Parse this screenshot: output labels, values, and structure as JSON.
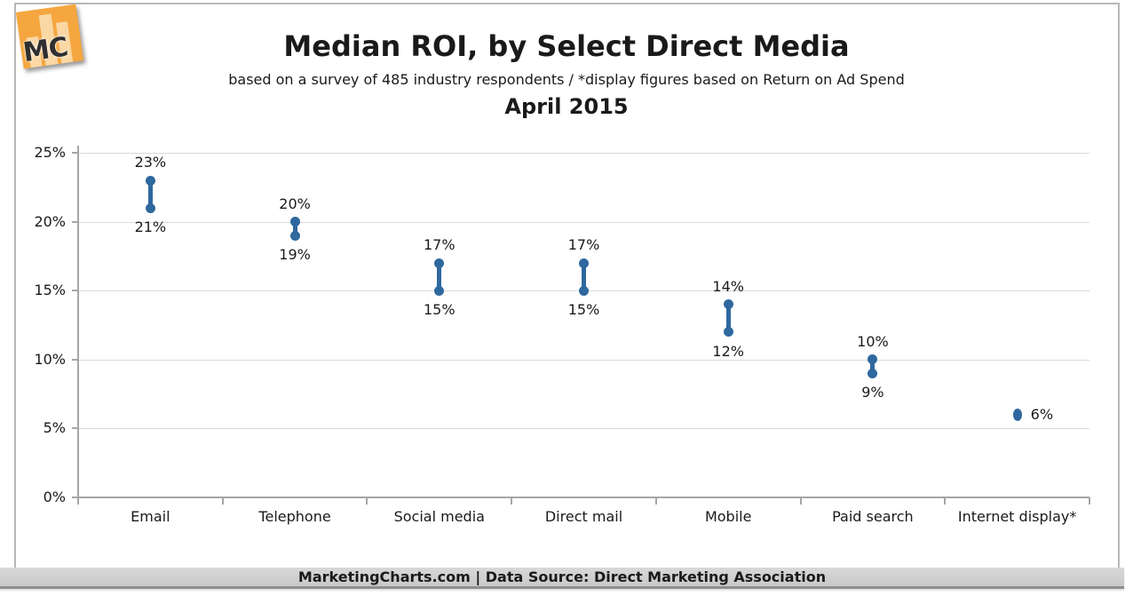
{
  "logo": {
    "text": "MC"
  },
  "header": {
    "title": "Median ROI, by Select Direct Media",
    "subtitle": "based on a survey of 485 industry respondents / *display figures based on Return on Ad Spend",
    "period": "April 2015"
  },
  "footer": {
    "text": "MarketingCharts.com | Data Source: Direct Marketing Association"
  },
  "colors": {
    "accent_blue": "#2E689E",
    "gridline": "#D9D9D9",
    "axis": "#A6A6A6",
    "text": "#1A1A1A",
    "footer_bg": "#CFCFCF",
    "footer_border": "#8E8E8E",
    "logo_orange": "#F5A63F",
    "logo_bar": "#FAD7A3"
  },
  "chart_data": {
    "type": "dumbbell-range",
    "title": "Median ROI, by Select Direct Media",
    "subtitle": "based on a survey of 485 industry respondents / *display figures based on Return on Ad Spend",
    "period_label": "April 2015",
    "xlabel": "",
    "ylabel": "",
    "ylim": [
      0,
      25
    ],
    "grid": "horizontal",
    "legend": "none",
    "y_ticks": [
      {
        "value": 25,
        "label": "25%"
      },
      {
        "value": 20,
        "label": "20%"
      },
      {
        "value": 15,
        "label": "15%"
      },
      {
        "value": 10,
        "label": "10%"
      },
      {
        "value": 5,
        "label": "5%"
      },
      {
        "value": 0,
        "label": "0%"
      }
    ],
    "categories": [
      "Email",
      "Telephone",
      "Social media",
      "Direct mail",
      "Mobile",
      "Paid search",
      "Internet display*"
    ],
    "points": [
      {
        "category": "Email",
        "high": 23,
        "low": 21,
        "high_label": "23%",
        "low_label": "21%"
      },
      {
        "category": "Telephone",
        "high": 20,
        "low": 19,
        "high_label": "20%",
        "low_label": "19%"
      },
      {
        "category": "Social media",
        "high": 17,
        "low": 15,
        "high_label": "17%",
        "low_label": "15%"
      },
      {
        "category": "Direct mail",
        "high": 17,
        "low": 15,
        "high_label": "17%",
        "low_label": "15%"
      },
      {
        "category": "Mobile",
        "high": 14,
        "low": 12,
        "high_label": "14%",
        "low_label": "12%"
      },
      {
        "category": "Paid search",
        "high": 10,
        "low": 9,
        "high_label": "10%",
        "low_label": "9%"
      },
      {
        "category": "Internet display*",
        "high": 6,
        "low": 6,
        "single_label": "6%",
        "label_position": "right"
      }
    ]
  }
}
